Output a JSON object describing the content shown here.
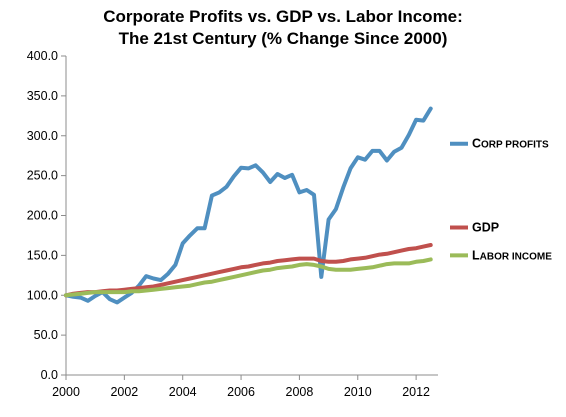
{
  "chart_data": {
    "type": "line",
    "title_lines": [
      "Corporate Profits vs. GDP vs. Labor Income:",
      "The 21st Century (% Change Since 2000)"
    ],
    "ylim": [
      0,
      400
    ],
    "yticks": [
      "0.0",
      "50.0",
      "100.0",
      "150.0",
      "200.0",
      "250.0",
      "300.0",
      "350.0",
      "400.0"
    ],
    "xlim": [
      2000,
      2012.75
    ],
    "xticks": [
      "2000",
      "2002",
      "2004",
      "2006",
      "2008",
      "2010",
      "2012"
    ],
    "grid": false,
    "legend_position": "right",
    "x": [
      2000,
      2000.25,
      2000.5,
      2000.75,
      2001,
      2001.25,
      2001.5,
      2001.75,
      2002,
      2002.25,
      2002.5,
      2002.75,
      2003,
      2003.25,
      2003.5,
      2003.75,
      2004,
      2004.25,
      2004.5,
      2004.75,
      2005,
      2005.25,
      2005.5,
      2005.75,
      2006,
      2006.25,
      2006.5,
      2006.75,
      2007,
      2007.25,
      2007.5,
      2007.75,
      2008,
      2008.25,
      2008.5,
      2008.75,
      2009,
      2009.25,
      2009.5,
      2009.75,
      2010,
      2010.25,
      2010.5,
      2010.75,
      2011,
      2011.25,
      2011.5,
      2011.75,
      2012,
      2012.25,
      2012.5
    ],
    "series": [
      {
        "name": "Corp profits",
        "color": "#4f8fc0",
        "values": [
          100,
          98,
          97,
          93,
          99,
          104,
          95,
          91,
          97,
          103,
          112,
          124,
          121,
          119,
          127,
          138,
          165,
          175,
          184,
          184,
          225,
          229,
          236,
          249,
          260,
          259,
          263,
          254,
          242,
          252,
          247,
          251,
          229,
          232,
          226,
          123,
          195,
          208,
          235,
          259,
          273,
          270,
          281,
          281,
          269,
          280,
          285,
          301,
          320,
          319,
          334
        ]
      },
      {
        "name": "GDP",
        "color": "#c0504d",
        "values": [
          100,
          102,
          103,
          104,
          104,
          105,
          106,
          106,
          107,
          108,
          109,
          110,
          111,
          113,
          115,
          117,
          119,
          121,
          123,
          125,
          127,
          129,
          131,
          133,
          135,
          136,
          138,
          140,
          141,
          143,
          144,
          145,
          146,
          146,
          146,
          143,
          142,
          142,
          143,
          145,
          146,
          147,
          149,
          151,
          152,
          154,
          156,
          158,
          159,
          161,
          163
        ]
      },
      {
        "name": "Labor income",
        "color": "#9bbb59",
        "values": [
          100,
          101,
          102,
          103,
          104,
          104,
          104,
          104,
          104,
          105,
          105,
          106,
          107,
          108,
          109,
          110,
          111,
          112,
          114,
          116,
          117,
          119,
          121,
          123,
          125,
          127,
          129,
          131,
          132,
          134,
          135,
          136,
          138,
          139,
          138,
          136,
          133,
          132,
          132,
          132,
          133,
          134,
          135,
          137,
          139,
          140,
          140,
          140,
          142,
          143,
          145
        ]
      }
    ],
    "legend_entries": [
      {
        "name": "Corp profits",
        "first": "C",
        "rest": "ORP PROFITS",
        "color": "#4f8fc0",
        "y": 290
      },
      {
        "name": "GDP",
        "first": "GDP",
        "rest": "",
        "color": "#c0504d",
        "y": 185
      },
      {
        "name": "Labor income",
        "first": "L",
        "rest": "ABOR INCOME",
        "color": "#9bbb59",
        "y": 150
      }
    ]
  }
}
